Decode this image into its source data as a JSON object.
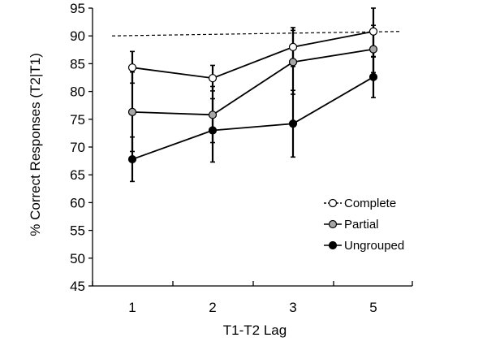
{
  "chart_data": {
    "type": "line",
    "title": "",
    "xlabel": "T1-T2 Lag",
    "ylabel": "% Correct Responses (T2|T1)",
    "categories": [
      "1",
      "2",
      "3",
      "5"
    ],
    "ylim": [
      45,
      95
    ],
    "yticks": [
      45,
      50,
      55,
      60,
      65,
      70,
      75,
      80,
      85,
      90,
      95
    ],
    "grid": false,
    "legend_position": "bottom-right",
    "reference_line": {
      "style": "dashed",
      "y_start": 90.0,
      "y_end": 90.8
    },
    "series": [
      {
        "name": "Complete",
        "marker": "open-circle",
        "line_style": "solid",
        "values": [
          84.3,
          82.4,
          88.0,
          90.8
        ],
        "error": [
          {
            "low": 81.5,
            "high": 87.2
          },
          {
            "low": 80.1,
            "high": 84.7
          },
          {
            "low": 84.5,
            "high": 91.5
          },
          {
            "low": 86.2,
            "high": 95.0
          }
        ]
      },
      {
        "name": "Partial",
        "marker": "gray-circle",
        "line_style": "solid",
        "values": [
          76.3,
          75.8,
          85.3,
          87.6
        ],
        "error": [
          {
            "low": 69.2,
            "high": 83.5
          },
          {
            "low": 70.8,
            "high": 80.9
          },
          {
            "low": 79.5,
            "high": 91.0
          },
          {
            "low": 83.4,
            "high": 91.9
          }
        ]
      },
      {
        "name": "Ungrouped",
        "marker": "black-circle",
        "line_style": "solid",
        "values": [
          67.8,
          73.0,
          74.2,
          82.6
        ],
        "error": [
          {
            "low": 63.8,
            "high": 71.8
          },
          {
            "low": 67.3,
            "high": 78.7
          },
          {
            "low": 68.2,
            "high": 80.2
          },
          {
            "low": 78.9,
            "high": 86.3
          }
        ]
      }
    ]
  },
  "colors": {
    "axis": "#000000",
    "line": "#000000",
    "complete_fill": "#ffffff",
    "partial_fill": "#a6a6a6",
    "ungrouped_fill": "#000000"
  }
}
